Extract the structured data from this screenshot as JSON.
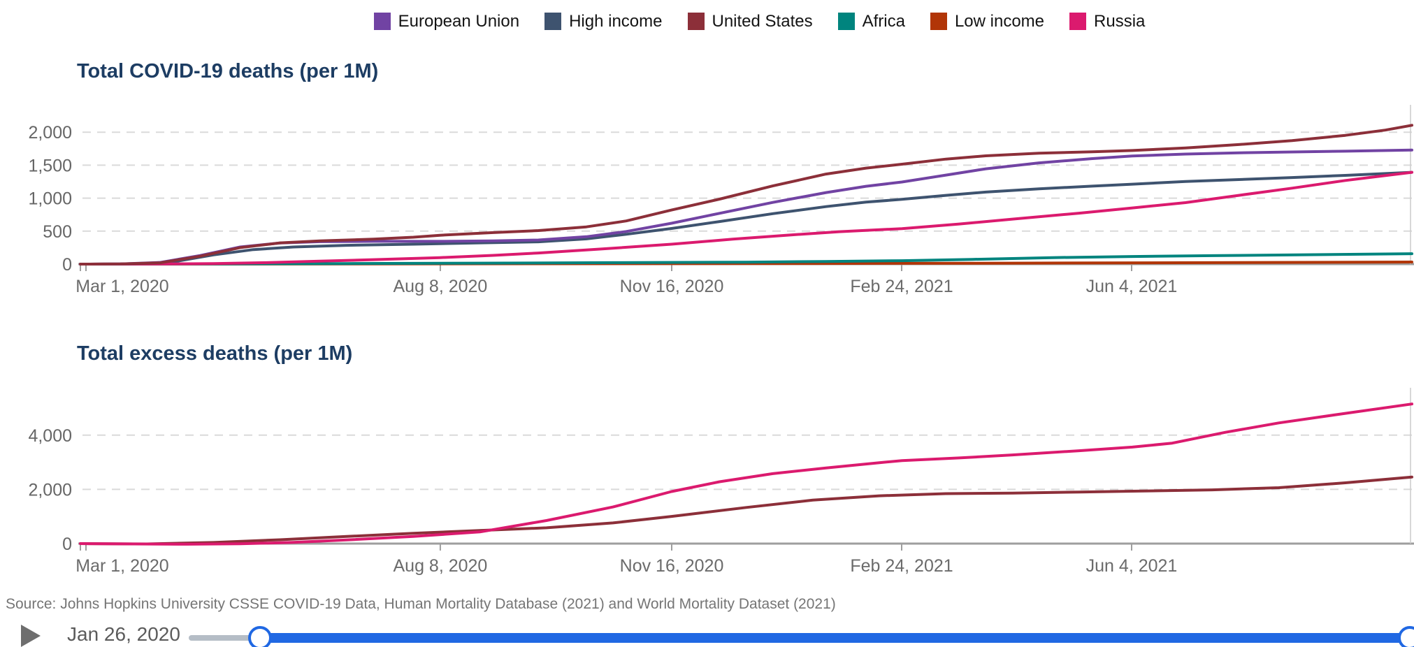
{
  "legend": {
    "items": [
      {
        "label": "European Union",
        "color": "#7143A3"
      },
      {
        "label": "High income",
        "color": "#3E536F"
      },
      {
        "label": "United States",
        "color": "#8C2F39"
      },
      {
        "label": "Africa",
        "color": "#00847E"
      },
      {
        "label": "Low income",
        "color": "#B13507"
      },
      {
        "label": "Russia",
        "color": "#DB1A6E"
      }
    ]
  },
  "chart_data": [
    {
      "type": "line",
      "title": "Total COVID-19 deaths (per 1M)",
      "ylabel": "Total COVID-19 deaths (per 1M)",
      "ylim": [
        0,
        2200
      ],
      "grid": "dashed-horizontal",
      "legend_position": "top-center",
      "y_ticks": [
        {
          "v": 0,
          "label": "0"
        },
        {
          "v": 500,
          "label": "500"
        },
        {
          "v": 1000,
          "label": "1,000"
        },
        {
          "v": 1500,
          "label": "1,500"
        },
        {
          "v": 2000,
          "label": "2,000"
        }
      ],
      "x_ticks": [
        {
          "label": "Mar 1, 2020",
          "f": 0.0042,
          "label_f": 0.0315
        },
        {
          "label": "Aug 8, 2020",
          "f": 0.2703
        },
        {
          "label": "Nov 16, 2020",
          "f": 0.4441
        },
        {
          "label": "Feb 24, 2021",
          "f": 0.6168
        },
        {
          "label": "Jun 4, 2021",
          "f": 0.7895
        }
      ],
      "series": [
        {
          "name": "Low income",
          "color": "#B13507",
          "points": [
            [
              0,
              0
            ],
            [
              0.2,
              2
            ],
            [
              0.4,
              6
            ],
            [
              0.55,
              10
            ],
            [
              0.7,
              15
            ],
            [
              0.85,
              22
            ],
            [
              1,
              32
            ]
          ]
        },
        {
          "name": "Africa",
          "color": "#00847E",
          "points": [
            [
              0,
              0
            ],
            [
              0.1,
              3
            ],
            [
              0.2,
              9
            ],
            [
              0.3,
              15
            ],
            [
              0.4,
              22
            ],
            [
              0.5,
              30
            ],
            [
              0.56,
              40
            ],
            [
              0.617,
              52
            ],
            [
              0.67,
              72
            ],
            [
              0.73,
              98
            ],
            [
              0.79,
              115
            ],
            [
              0.85,
              128
            ],
            [
              0.92,
              142
            ],
            [
              1,
              158
            ]
          ]
        },
        {
          "name": "High income",
          "color": "#3E536F",
          "points": [
            [
              0,
              0
            ],
            [
              0.04,
              3
            ],
            [
              0.07,
              35
            ],
            [
              0.1,
              140
            ],
            [
              0.13,
              220
            ],
            [
              0.16,
              260
            ],
            [
              0.2,
              285
            ],
            [
              0.25,
              302
            ],
            [
              0.3,
              322
            ],
            [
              0.344,
              338
            ],
            [
              0.38,
              382
            ],
            [
              0.41,
              452
            ],
            [
              0.444,
              540
            ],
            [
              0.48,
              645
            ],
            [
              0.52,
              765
            ],
            [
              0.56,
              872
            ],
            [
              0.59,
              940
            ],
            [
              0.617,
              982
            ],
            [
              0.65,
              1042
            ],
            [
              0.68,
              1092
            ],
            [
              0.72,
              1142
            ],
            [
              0.76,
              1182
            ],
            [
              0.79,
              1212
            ],
            [
              0.83,
              1252
            ],
            [
              0.87,
              1282
            ],
            [
              0.91,
              1312
            ],
            [
              0.95,
              1345
            ],
            [
              1,
              1392
            ]
          ]
        },
        {
          "name": "Russia",
          "color": "#DB1A6E",
          "points": [
            [
              0,
              0
            ],
            [
              0.06,
              2
            ],
            [
              0.1,
              8
            ],
            [
              0.14,
              22
            ],
            [
              0.18,
              45
            ],
            [
              0.22,
              68
            ],
            [
              0.27,
              98
            ],
            [
              0.31,
              132
            ],
            [
              0.344,
              168
            ],
            [
              0.39,
              228
            ],
            [
              0.444,
              302
            ],
            [
              0.49,
              378
            ],
            [
              0.53,
              438
            ],
            [
              0.57,
              492
            ],
            [
              0.617,
              538
            ],
            [
              0.66,
              608
            ],
            [
              0.7,
              682
            ],
            [
              0.75,
              772
            ],
            [
              0.79,
              852
            ],
            [
              0.83,
              932
            ],
            [
              0.87,
              1042
            ],
            [
              0.91,
              1152
            ],
            [
              0.95,
              1268
            ],
            [
              1,
              1392
            ]
          ]
        },
        {
          "name": "European Union",
          "color": "#7143A3",
          "points": [
            [
              0,
              0
            ],
            [
              0.03,
              2
            ],
            [
              0.06,
              25
            ],
            [
              0.09,
              130
            ],
            [
              0.12,
              260
            ],
            [
              0.15,
              320
            ],
            [
              0.18,
              340
            ],
            [
              0.22,
              345
            ],
            [
              0.27,
              345
            ],
            [
              0.31,
              352
            ],
            [
              0.344,
              365
            ],
            [
              0.38,
              415
            ],
            [
              0.41,
              495
            ],
            [
              0.444,
              620
            ],
            [
              0.48,
              770
            ],
            [
              0.52,
              935
            ],
            [
              0.56,
              1085
            ],
            [
              0.59,
              1180
            ],
            [
              0.617,
              1245
            ],
            [
              0.65,
              1350
            ],
            [
              0.68,
              1445
            ],
            [
              0.72,
              1535
            ],
            [
              0.76,
              1600
            ],
            [
              0.79,
              1640
            ],
            [
              0.83,
              1668
            ],
            [
              0.87,
              1688
            ],
            [
              0.91,
              1700
            ],
            [
              0.95,
              1712
            ],
            [
              1,
              1730
            ]
          ]
        },
        {
          "name": "United States",
          "color": "#8C2F39",
          "points": [
            [
              0,
              0
            ],
            [
              0.03,
              2
            ],
            [
              0.06,
              20
            ],
            [
              0.09,
              120
            ],
            [
              0.12,
              250
            ],
            [
              0.15,
              322
            ],
            [
              0.18,
              352
            ],
            [
              0.22,
              378
            ],
            [
              0.25,
              408
            ],
            [
              0.27,
              438
            ],
            [
              0.31,
              478
            ],
            [
              0.344,
              508
            ],
            [
              0.38,
              565
            ],
            [
              0.41,
              655
            ],
            [
              0.444,
              820
            ],
            [
              0.48,
              985
            ],
            [
              0.52,
              1185
            ],
            [
              0.56,
              1365
            ],
            [
              0.59,
              1455
            ],
            [
              0.617,
              1515
            ],
            [
              0.65,
              1592
            ],
            [
              0.68,
              1642
            ],
            [
              0.72,
              1682
            ],
            [
              0.76,
              1702
            ],
            [
              0.79,
              1722
            ],
            [
              0.83,
              1762
            ],
            [
              0.87,
              1812
            ],
            [
              0.91,
              1872
            ],
            [
              0.95,
              1952
            ],
            [
              0.98,
              2032
            ],
            [
              1,
              2105
            ]
          ]
        }
      ]
    },
    {
      "type": "line",
      "title": "Total excess deaths (per 1M)",
      "ylabel": "Total excess deaths (per 1M)",
      "ylim": [
        -100,
        5400
      ],
      "grid": "dashed-horizontal",
      "y_ticks": [
        {
          "v": 0,
          "label": "0"
        },
        {
          "v": 2000,
          "label": "2,000"
        },
        {
          "v": 4000,
          "label": "4,000"
        }
      ],
      "x_ticks": [
        {
          "label": "Mar 1, 2020",
          "f": 0.0042,
          "label_f": 0.0315
        },
        {
          "label": "Aug 8, 2020",
          "f": 0.2703
        },
        {
          "label": "Nov 16, 2020",
          "f": 0.4441
        },
        {
          "label": "Feb 24, 2021",
          "f": 0.6168
        },
        {
          "label": "Jun 4, 2021",
          "f": 0.7895
        }
      ],
      "series": [
        {
          "name": "United States",
          "color": "#8C2F39",
          "points": [
            [
              0,
              0
            ],
            [
              0.05,
              -12
            ],
            [
              0.1,
              42
            ],
            [
              0.15,
              142
            ],
            [
              0.2,
              262
            ],
            [
              0.25,
              382
            ],
            [
              0.3,
              482
            ],
            [
              0.35,
              582
            ],
            [
              0.4,
              762
            ],
            [
              0.444,
              1002
            ],
            [
              0.5,
              1332
            ],
            [
              0.55,
              1602
            ],
            [
              0.6,
              1762
            ],
            [
              0.65,
              1842
            ],
            [
              0.7,
              1862
            ],
            [
              0.75,
              1902
            ],
            [
              0.79,
              1932
            ],
            [
              0.85,
              1982
            ],
            [
              0.9,
              2062
            ],
            [
              0.95,
              2242
            ],
            [
              1,
              2455
            ]
          ]
        },
        {
          "name": "Russia",
          "color": "#DB1A6E",
          "points": [
            [
              0,
              0
            ],
            [
              0.04,
              -12
            ],
            [
              0.08,
              -22
            ],
            [
              0.12,
              -8
            ],
            [
              0.16,
              45
            ],
            [
              0.2,
              135
            ],
            [
              0.25,
              265
            ],
            [
              0.3,
              430
            ],
            [
              0.35,
              850
            ],
            [
              0.4,
              1350
            ],
            [
              0.444,
              1920
            ],
            [
              0.48,
              2280
            ],
            [
              0.52,
              2580
            ],
            [
              0.56,
              2790
            ],
            [
              0.6,
              2985
            ],
            [
              0.617,
              3060
            ],
            [
              0.66,
              3160
            ],
            [
              0.7,
              3270
            ],
            [
              0.75,
              3425
            ],
            [
              0.79,
              3560
            ],
            [
              0.82,
              3705
            ],
            [
              0.86,
              4105
            ],
            [
              0.9,
              4450
            ],
            [
              0.95,
              4805
            ],
            [
              1,
              5150
            ]
          ]
        }
      ]
    }
  ],
  "source": {
    "text": "Source: Johns Hopkins University CSSE COVID-19 Data, Human Mortality Database (2021) and World Mortality Dataset (2021)"
  },
  "timeline": {
    "date_label": "Jan 26, 2020",
    "accent": "#2068E3",
    "track_color": "#B5BDC6",
    "play_color": "#6e6e6e"
  }
}
